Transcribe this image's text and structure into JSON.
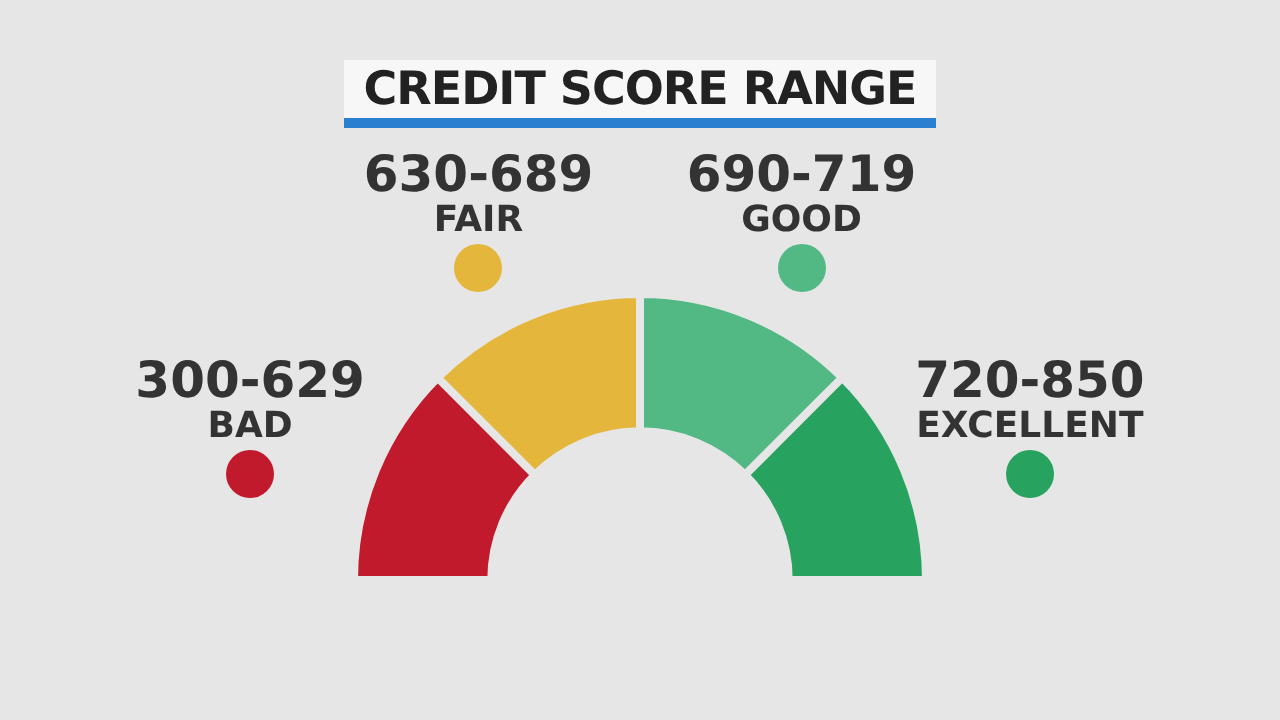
{
  "chart_data": {
    "type": "donut",
    "title": "CREDIT SCORE RANGE",
    "categories": [
      "300-629\nBAD",
      "630-689\nFAIR",
      "690-719\nGOOD",
      "720-850\nEXCELLENT"
    ],
    "values": [
      25,
      25,
      25,
      25
    ],
    "colors": [
      "#c01a2c",
      "#e4b63c",
      "#52b985",
      "#28a25f"
    ]
  }
}
